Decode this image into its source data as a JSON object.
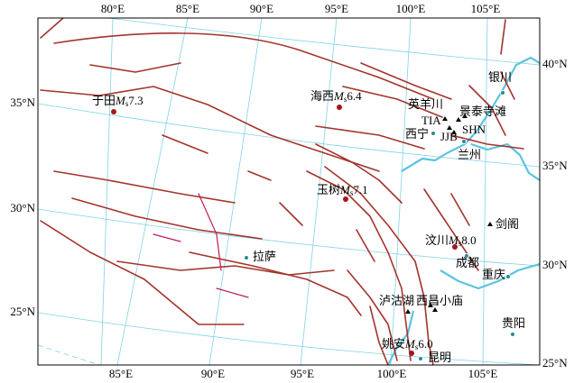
{
  "axes": {
    "top_lon": [
      "80°E",
      "85°E",
      "90°E",
      "95°E",
      "100°E",
      "105°E"
    ],
    "bottom_lon": [
      "85°E",
      "90°E",
      "95°E",
      "100°E",
      "105°E"
    ],
    "left_lat": [
      "35°N",
      "30°N",
      "25°N"
    ],
    "right_lat": [
      "40°N",
      "35°N",
      "30°N",
      "25°N"
    ]
  },
  "earthquakes": [
    {
      "place": "于田",
      "symbol": "M",
      "sub": "s",
      "magnitude": "7.3"
    },
    {
      "place": "海西",
      "symbol": "M",
      "sub": "s",
      "magnitude": "6.4"
    },
    {
      "place": "玉树",
      "symbol": "M",
      "sub": "s",
      "magnitude": "7.1"
    },
    {
      "place": "汶川",
      "symbol": "M",
      "sub": "s",
      "magnitude": "8.0"
    },
    {
      "place": "姚安",
      "symbol": "M",
      "sub": "s",
      "magnitude": "6.0"
    }
  ],
  "stations": [
    "英羊川",
    "景泰",
    "寺滩",
    "TIA",
    "SHN",
    "JJB",
    "剑阁",
    "泸沽湖",
    "西昌",
    "小庙"
  ],
  "cities": [
    "银川",
    "西宁",
    "兰州",
    "拉萨",
    "成都",
    "重庆",
    "贵阳",
    "昆明"
  ]
}
